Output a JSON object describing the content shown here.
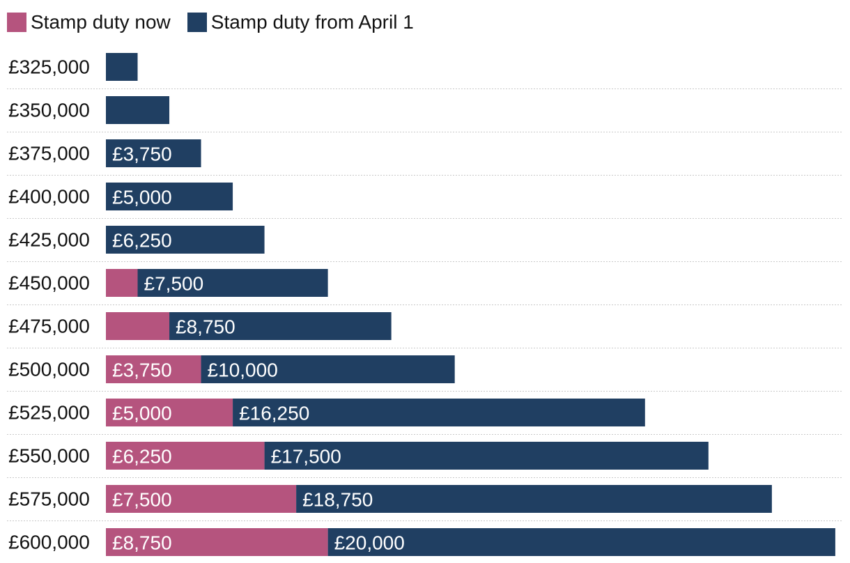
{
  "chart_data": {
    "type": "bar",
    "orientation": "horizontal",
    "stacked": true,
    "title": "",
    "xlabel": "",
    "ylabel": "",
    "xlim": [
      0,
      29000
    ],
    "legend_position": "top-left",
    "categories": [
      "£325,000",
      "£350,000",
      "£375,000",
      "£400,000",
      "£425,000",
      "£450,000",
      "£475,000",
      "£500,000",
      "£525,000",
      "£550,000",
      "£575,000",
      "£600,000"
    ],
    "series": [
      {
        "name": "Stamp duty now",
        "color": "#b5547e",
        "values": [
          0,
          0,
          0,
          0,
          0,
          1250,
          2500,
          3750,
          5000,
          6250,
          7500,
          8750
        ],
        "labels": [
          "",
          "",
          "",
          "",
          "",
          "",
          "",
          "£3,750",
          "£5,000",
          "£6,250",
          "£7,500",
          "£8,750"
        ]
      },
      {
        "name": "Stamp duty from April 1",
        "color": "#203f62",
        "values": [
          1250,
          2500,
          3750,
          5000,
          6250,
          7500,
          8750,
          10000,
          16250,
          17500,
          18750,
          20000
        ],
        "labels": [
          "",
          "",
          "£3,750",
          "£5,000",
          "£6,250",
          "£7,500",
          "£8,750",
          "£10,000",
          "£16,250",
          "£17,500",
          "£18,750",
          "£20,000"
        ]
      }
    ]
  }
}
